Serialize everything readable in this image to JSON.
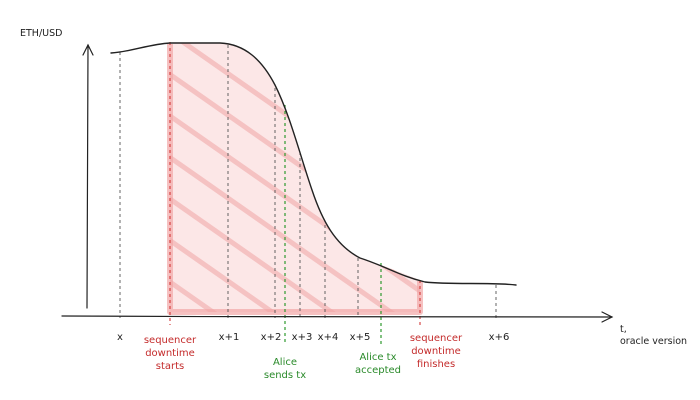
{
  "diagram": {
    "y_axis_label": "ETH/USD",
    "x_axis_label_lines": [
      "t,",
      "oracle version"
    ],
    "oracle_ticks": [
      "x",
      "x+1",
      "x+2",
      "x+3",
      "x+4",
      "x+5",
      "x+6"
    ],
    "annotations": {
      "sequencer_down_start": [
        "sequencer",
        "downtime",
        "starts"
      ],
      "alice_sends": [
        "Alice",
        "sends tx"
      ],
      "alice_accepted": [
        "Alice tx",
        "accepted"
      ],
      "sequencer_down_end": [
        "sequencer",
        "downtime",
        "finishes"
      ]
    },
    "colors": {
      "ink": "#222222",
      "tick_guides": "#555555",
      "sequencer": "#d23a3a",
      "alice": "#2e9a2e",
      "downtime_fill": "#f6c6c6"
    }
  }
}
